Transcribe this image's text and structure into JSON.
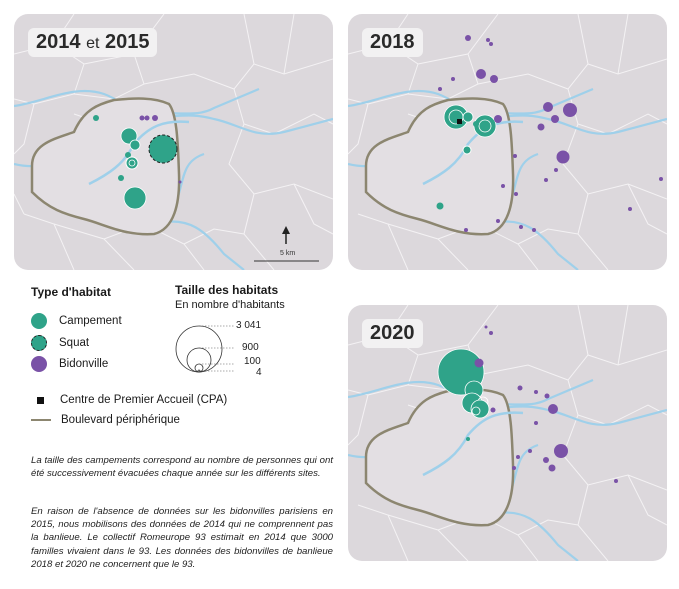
{
  "panels": {
    "p2014": {
      "label_a": "2014",
      "label_et": "et",
      "label_b": "2015",
      "scale": "5 km"
    },
    "p2018": {
      "label": "2018"
    },
    "p2020": {
      "label": "2020"
    }
  },
  "legend": {
    "type_title": "Type d'habitat",
    "types": [
      {
        "label": "Campement",
        "color": "#2fa389"
      },
      {
        "label": "Squat",
        "color": "#2fa389"
      },
      {
        "label": "Bidonville",
        "color": "#7a52a7"
      }
    ],
    "size_title": "Taille des habitats",
    "size_subtitle": "En nombre d'habitants",
    "size_values": [
      "3 041",
      "900",
      "100",
      "4"
    ],
    "cpa_label": "Centre de Premier Accueil (CPA)",
    "boulevard_label": "Boulevard périphérique"
  },
  "notes": {
    "note1": "La taille des campements correspond au nombre de personnes qui ont été successivement évacuées chaque année sur les différents sites.",
    "note2": "En raison de l'absence de données sur les bidonvilles parisiens en 2015, nous mobilisons des données de 2014 qui ne comprennent pas la banlieue. Le collectif Romeurope 93 estimait en 2014 que 3000 familles vivaient dans le 93. Les données des bidonvilles de banlieue 2018 et 2020 ne concernent que le 93."
  },
  "colors": {
    "campement": "#2fa389",
    "squat": "#2fa389",
    "bidonville": "#7a52a7",
    "periph": "#8c8670",
    "water": "#9fd0ea",
    "land": "#dcd8dc"
  }
}
